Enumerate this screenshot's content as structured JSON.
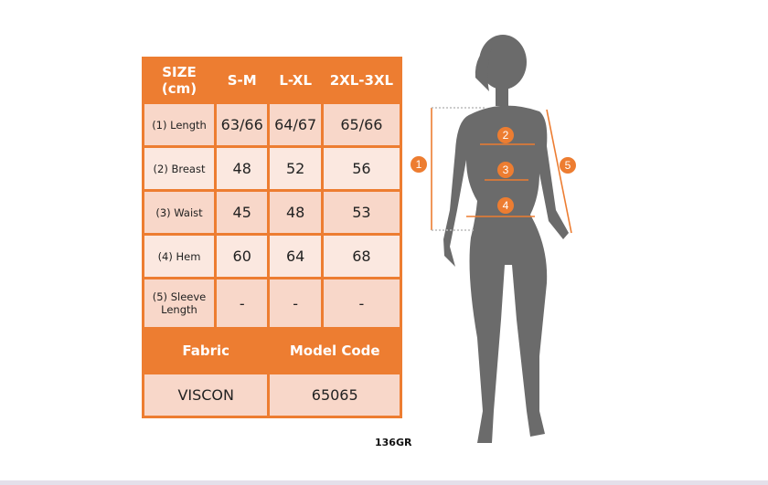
{
  "table": {
    "header": [
      "SIZE (cm)",
      "S-M",
      "L-XL",
      "2XL-3XL"
    ],
    "rows": [
      {
        "label": "(1) Length",
        "values": [
          "63/66",
          "64/67",
          "65/66"
        ]
      },
      {
        "label": "(2) Breast",
        "values": [
          "48",
          "52",
          "56"
        ]
      },
      {
        "label": "(3) Waist",
        "values": [
          "45",
          "48",
          "53"
        ]
      },
      {
        "label": "(4) Hem",
        "values": [
          "60",
          "64",
          "68"
        ]
      },
      {
        "label": "(5) Sleeve Length",
        "values": [
          "-",
          "-",
          "-"
        ]
      }
    ],
    "footer_header": [
      "Fabric",
      "Model Code"
    ],
    "footer_values": [
      "VISCON",
      "65065"
    ]
  },
  "product_code": "136GR",
  "figure": {
    "markers": [
      "1",
      "2",
      "3",
      "4",
      "5"
    ]
  },
  "colors": {
    "accent": "#ed7d31",
    "row_dark": "#f8d7c9",
    "row_light": "#fbe8e0",
    "silhouette": "#6b6b6b"
  }
}
